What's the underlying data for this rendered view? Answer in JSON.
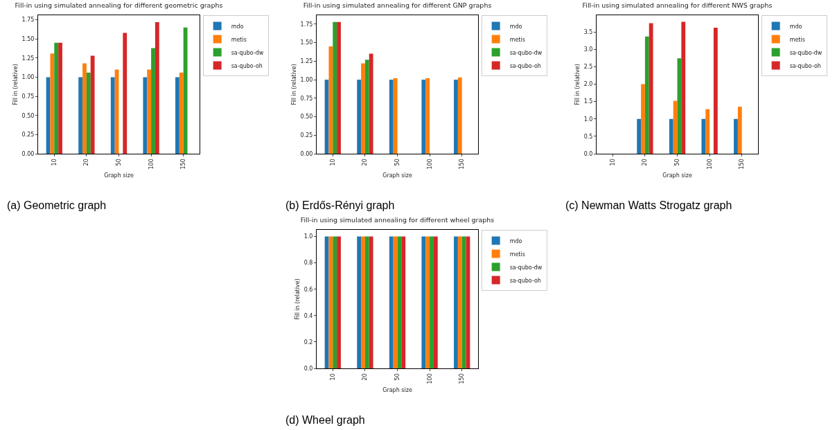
{
  "chart_data": [
    {
      "type": "bar",
      "title": "Fill-in using simulated annealing for different geometric graphs",
      "xlabel": "Graph size",
      "ylabel": "Fill in (relative)",
      "annotations": [
        "(a) Geometric graph"
      ],
      "legend": "top right",
      "categories": [
        "10",
        "20",
        "50",
        "100",
        "150"
      ],
      "ylim": [
        0,
        1.81
      ],
      "yticks": [
        {
          "value": 0,
          "label": "0.00"
        },
        {
          "value": 0.25,
          "label": "0.25"
        },
        {
          "value": 0.5,
          "label": "0.50"
        },
        {
          "value": 0.75,
          "label": "0.75"
        },
        {
          "value": 1,
          "label": "1.00"
        },
        {
          "value": 1.25,
          "label": "1.25"
        },
        {
          "value": 1.5,
          "label": "1.50"
        },
        {
          "value": 1.75,
          "label": "1.75"
        }
      ],
      "series": [
        {
          "name": "mdo",
          "color": "#1f77b4",
          "values": [
            1,
            1,
            1,
            1,
            1
          ]
        },
        {
          "name": "metis",
          "color": "#ff7f0e",
          "values": [
            1.31,
            1.18,
            1.1,
            1.1,
            1.06
          ]
        },
        {
          "name": "sa-qubo-dw",
          "color": "#2ca02c",
          "values": [
            1.45,
            1.06,
            0,
            1.38,
            1.65
          ]
        },
        {
          "name": "sa-qubo-oh",
          "color": "#d62728",
          "values": [
            1.45,
            1.28,
            1.58,
            1.72,
            0
          ]
        }
      ]
    },
    {
      "type": "bar",
      "title": "Fill-in using simulated annealing for different GNP graphs",
      "xlabel": "Graph size",
      "ylabel": "Fill in (relative)",
      "annotations": [
        "(b) Erdős-Rényi graph"
      ],
      "legend": "top right",
      "categories": [
        "10",
        "20",
        "50",
        "100",
        "150"
      ],
      "ylim": [
        0,
        1.87
      ],
      "yticks": [
        {
          "value": 0,
          "label": "0.00"
        },
        {
          "value": 0.25,
          "label": "0.25"
        },
        {
          "value": 0.5,
          "label": "0.50"
        },
        {
          "value": 0.75,
          "label": "0.75"
        },
        {
          "value": 1,
          "label": "1.00"
        },
        {
          "value": 1.25,
          "label": "1.25"
        },
        {
          "value": 1.5,
          "label": "1.50"
        },
        {
          "value": 1.75,
          "label": "1.75"
        }
      ],
      "series": [
        {
          "name": "mdo",
          "color": "#1f77b4",
          "values": [
            1,
            1,
            1,
            1,
            1
          ]
        },
        {
          "name": "metis",
          "color": "#ff7f0e",
          "values": [
            1.45,
            1.22,
            1.02,
            1.02,
            1.03
          ]
        },
        {
          "name": "sa-qubo-dw",
          "color": "#2ca02c",
          "values": [
            1.78,
            1.27,
            0,
            0,
            0
          ]
        },
        {
          "name": "sa-qubo-oh",
          "color": "#d62728",
          "values": [
            1.78,
            1.35,
            0,
            0,
            0
          ]
        }
      ]
    },
    {
      "type": "bar",
      "title": "Fill-in using simulated annealing for different NWS graphs",
      "xlabel": "Graph size",
      "ylabel": "Fill in (relative)",
      "annotations": [
        "(c) Newman Watts Strogatz graph"
      ],
      "legend": "top right",
      "categories": [
        "10",
        "20",
        "50",
        "100",
        "150"
      ],
      "ylim": [
        0,
        3.98
      ],
      "yticks": [
        {
          "value": 0,
          "label": "0.0"
        },
        {
          "value": 0.5,
          "label": "0.5"
        },
        {
          "value": 1,
          "label": "1.0"
        },
        {
          "value": 1.5,
          "label": "1.5"
        },
        {
          "value": 2,
          "label": "2.0"
        },
        {
          "value": 2.5,
          "label": "2.5"
        },
        {
          "value": 3,
          "label": "3.0"
        },
        {
          "value": 3.5,
          "label": "3.5"
        }
      ],
      "series": [
        {
          "name": "mdo",
          "color": "#1f77b4",
          "values": [
            0,
            1,
            1,
            1,
            1
          ]
        },
        {
          "name": "metis",
          "color": "#ff7f0e",
          "values": [
            0,
            2.0,
            1.52,
            1.28,
            1.35
          ]
        },
        {
          "name": "sa-qubo-dw",
          "color": "#2ca02c",
          "values": [
            0,
            3.37,
            2.74,
            0,
            0
          ]
        },
        {
          "name": "sa-qubo-oh",
          "color": "#d62728",
          "values": [
            0,
            3.75,
            3.79,
            3.62,
            0
          ]
        }
      ]
    },
    {
      "type": "bar",
      "title": "Fill-in using simulated annealing for different wheel graphs",
      "xlabel": "Graph size",
      "ylabel": "Fill in (relative)",
      "annotations": [
        "(d) Wheel graph"
      ],
      "legend": "top right",
      "categories": [
        "10",
        "20",
        "50",
        "100",
        "150"
      ],
      "ylim": [
        0,
        1.05
      ],
      "yticks": [
        {
          "value": 0,
          "label": "0.0"
        },
        {
          "value": 0.2,
          "label": "0.2"
        },
        {
          "value": 0.4,
          "label": "0.4"
        },
        {
          "value": 0.6,
          "label": "0.6"
        },
        {
          "value": 0.8,
          "label": "0.8"
        },
        {
          "value": 1,
          "label": "1.0"
        }
      ],
      "series": [
        {
          "name": "mdo",
          "color": "#1f77b4",
          "values": [
            1,
            1,
            1,
            1,
            1
          ]
        },
        {
          "name": "metis",
          "color": "#ff7f0e",
          "values": [
            1,
            1,
            1,
            1,
            1
          ]
        },
        {
          "name": "sa-qubo-dw",
          "color": "#2ca02c",
          "values": [
            1,
            1,
            1,
            1,
            1
          ]
        },
        {
          "name": "sa-qubo-oh",
          "color": "#d62728",
          "values": [
            1,
            1,
            1,
            1,
            1
          ]
        }
      ]
    }
  ]
}
